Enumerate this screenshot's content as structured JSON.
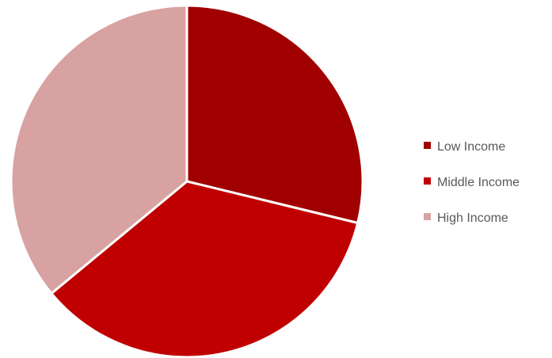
{
  "chart_data": {
    "type": "pie",
    "title": "",
    "legend_position": "right",
    "start_angle_deg": 0,
    "direction": "clockwise",
    "slices": [
      {
        "label": "Low Income",
        "value": 28.8,
        "color": "#a00000"
      },
      {
        "label": "Middle Income",
        "value": 35.2,
        "color": "#c00000"
      },
      {
        "label": "High Income",
        "value": 36.0,
        "color": "#d8a2a2"
      }
    ]
  }
}
